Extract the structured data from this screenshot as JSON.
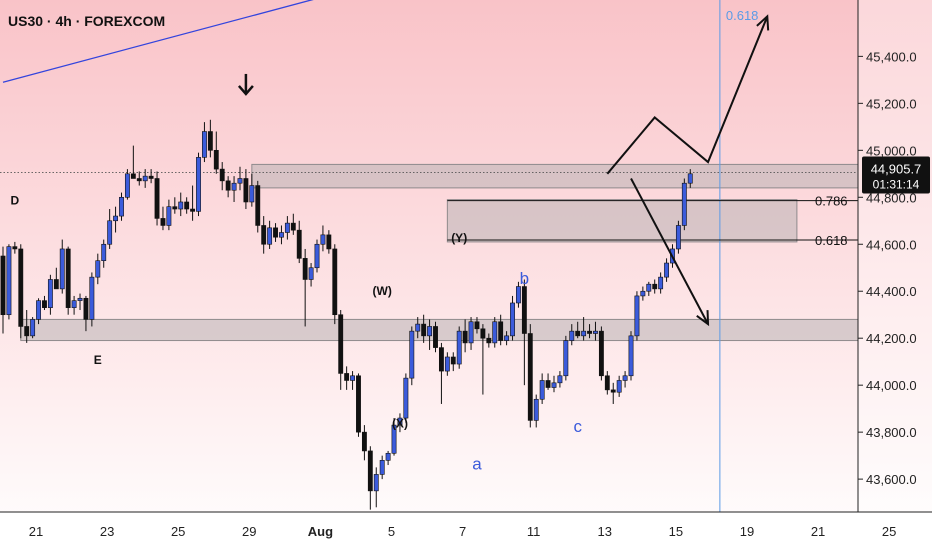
{
  "header": {
    "title": "US30 · 4h · FOREXCOM"
  },
  "colors": {
    "bg_top": "#f9c3c8",
    "bg_bottom": "#ffffff",
    "candle_up": "#3b5bdb",
    "candle_down": "#111111",
    "zone": "#b9b3b5",
    "trendline": "#3344dd",
    "fib_line": "#5b9be6",
    "price_tag_bg": "#111111"
  },
  "chart_data": {
    "type": "candlestick",
    "symbol": "US30",
    "timeframe": "4h",
    "source": "FOREXCOM",
    "ylim": [
      43460,
      45640
    ],
    "y_ticks": [
      43600,
      43800,
      44000,
      44200,
      44400,
      44600,
      44800,
      45000,
      45200,
      45400
    ],
    "y_tick_labels": [
      "43,600.0",
      "43,800.0",
      "44,000.0",
      "44,200.0",
      "44,400.0",
      "44,600.0",
      "44,800.0",
      "45,000.0",
      "45,200.0",
      "45,400.0"
    ],
    "x_tick_labels": [
      "21",
      "23",
      "25",
      "29",
      "Aug",
      "5",
      "7",
      "11",
      "13",
      "15",
      "19",
      "21",
      "25"
    ],
    "x_tick_bars": [
      0,
      12,
      24,
      36,
      48,
      60,
      72,
      84,
      96,
      108,
      120,
      132,
      144
    ],
    "bars_total": 146,
    "current_price": {
      "value": 44905.7,
      "label": "44,905.7",
      "countdown": "01:31:14"
    },
    "candles": [
      [
        44550,
        44590,
        44220,
        44300
      ],
      [
        44300,
        44600,
        44280,
        44590
      ],
      [
        44590,
        44610,
        44560,
        44580
      ],
      [
        44580,
        44600,
        44200,
        44250
      ],
      [
        44250,
        44320,
        44180,
        44210
      ],
      [
        44210,
        44290,
        44200,
        44280
      ],
      [
        44280,
        44370,
        44260,
        44360
      ],
      [
        44360,
        44380,
        44320,
        44330
      ],
      [
        44330,
        44470,
        44300,
        44450
      ],
      [
        44450,
        44500,
        44420,
        44410
      ],
      [
        44410,
        44620,
        44390,
        44580
      ],
      [
        44580,
        44590,
        44300,
        44330
      ],
      [
        44330,
        44380,
        44300,
        44360
      ],
      [
        44360,
        44390,
        44320,
        44370
      ],
      [
        44370,
        44380,
        44230,
        44280
      ],
      [
        44280,
        44480,
        44250,
        44460
      ],
      [
        44460,
        44560,
        44430,
        44530
      ],
      [
        44530,
        44620,
        44500,
        44600
      ],
      [
        44600,
        44750,
        44580,
        44700
      ],
      [
        44700,
        44760,
        44650,
        44720
      ],
      [
        44720,
        44820,
        44700,
        44800
      ],
      [
        44800,
        44920,
        44790,
        44900
      ],
      [
        44900,
        45020,
        44880,
        44880
      ],
      [
        44880,
        44910,
        44850,
        44870
      ],
      [
        44870,
        44920,
        44840,
        44890
      ],
      [
        44890,
        44920,
        44860,
        44880
      ],
      [
        44880,
        44910,
        44680,
        44710
      ],
      [
        44710,
        44760,
        44660,
        44680
      ],
      [
        44680,
        44790,
        44660,
        44760
      ],
      [
        44760,
        44800,
        44730,
        44750
      ],
      [
        44750,
        44820,
        44720,
        44780
      ],
      [
        44780,
        44800,
        44730,
        44750
      ],
      [
        44750,
        44850,
        44700,
        44740
      ],
      [
        44740,
        44990,
        44720,
        44970
      ],
      [
        44970,
        45120,
        44950,
        45080
      ],
      [
        45080,
        45130,
        44970,
        45000
      ],
      [
        45000,
        45080,
        44900,
        44920
      ],
      [
        44920,
        44950,
        44830,
        44870
      ],
      [
        44870,
        44890,
        44800,
        44830
      ],
      [
        44830,
        44890,
        44780,
        44860
      ],
      [
        44860,
        44930,
        44830,
        44880
      ],
      [
        44880,
        44920,
        44750,
        44780
      ],
      [
        44780,
        44900,
        44760,
        44850
      ],
      [
        44850,
        44870,
        44650,
        44680
      ],
      [
        44680,
        44720,
        44560,
        44600
      ],
      [
        44600,
        44700,
        44580,
        44670
      ],
      [
        44670,
        44690,
        44610,
        44630
      ],
      [
        44630,
        44680,
        44600,
        44650
      ],
      [
        44650,
        44720,
        44620,
        44690
      ],
      [
        44690,
        44730,
        44640,
        44660
      ],
      [
        44660,
        44700,
        44520,
        44540
      ],
      [
        44540,
        44580,
        44250,
        44450
      ],
      [
        44450,
        44520,
        44420,
        44500
      ],
      [
        44500,
        44620,
        44480,
        44600
      ],
      [
        44600,
        44680,
        44570,
        44640
      ],
      [
        44640,
        44660,
        44560,
        44580
      ],
      [
        44580,
        44600,
        44260,
        44300
      ],
      [
        44300,
        44320,
        43980,
        44050
      ],
      [
        44050,
        44080,
        43980,
        44020
      ],
      [
        44020,
        44060,
        43980,
        44040
      ],
      [
        44040,
        44050,
        43780,
        43800
      ],
      [
        43800,
        43830,
        43680,
        43720
      ],
      [
        43720,
        43740,
        43470,
        43550
      ],
      [
        43550,
        43650,
        43480,
        43620
      ],
      [
        43620,
        43700,
        43600,
        43680
      ],
      [
        43680,
        43720,
        43660,
        43710
      ],
      [
        43710,
        43860,
        43700,
        43830
      ],
      [
        43830,
        43880,
        43800,
        43860
      ],
      [
        43860,
        44050,
        43840,
        44030
      ],
      [
        44030,
        44250,
        44000,
        44230
      ],
      [
        44230,
        44290,
        44200,
        44260
      ],
      [
        44260,
        44300,
        44180,
        44210
      ],
      [
        44210,
        44280,
        44150,
        44250
      ],
      [
        44250,
        44270,
        44140,
        44160
      ],
      [
        44160,
        44180,
        43920,
        44060
      ],
      [
        44060,
        44140,
        44040,
        44120
      ],
      [
        44120,
        44140,
        44060,
        44090
      ],
      [
        44090,
        44250,
        44070,
        44230
      ],
      [
        44230,
        44280,
        44140,
        44180
      ],
      [
        44180,
        44290,
        44150,
        44270
      ],
      [
        44270,
        44290,
        44220,
        44240
      ],
      [
        44240,
        44260,
        43960,
        44200
      ],
      [
        44200,
        44220,
        44160,
        44180
      ],
      [
        44180,
        44290,
        44160,
        44270
      ],
      [
        44270,
        44300,
        44170,
        44190
      ],
      [
        44190,
        44230,
        44170,
        44210
      ],
      [
        44210,
        44380,
        44190,
        44350
      ],
      [
        44350,
        44440,
        44330,
        44420
      ],
      [
        44420,
        44450,
        44000,
        44220
      ],
      [
        44220,
        44260,
        43820,
        43850
      ],
      [
        43850,
        43960,
        43820,
        43940
      ],
      [
        43940,
        44050,
        43920,
        44020
      ],
      [
        44020,
        44050,
        43980,
        43990
      ],
      [
        43990,
        44040,
        43970,
        44010
      ],
      [
        44010,
        44060,
        43990,
        44040
      ],
      [
        44040,
        44210,
        44020,
        44190
      ],
      [
        44190,
        44260,
        44170,
        44230
      ],
      [
        44230,
        44270,
        44200,
        44210
      ],
      [
        44210,
        44290,
        44190,
        44230
      ],
      [
        44230,
        44260,
        44200,
        44220
      ],
      [
        44220,
        44270,
        44190,
        44230
      ],
      [
        44230,
        44250,
        44020,
        44040
      ],
      [
        44040,
        44060,
        43960,
        43980
      ],
      [
        43980,
        44010,
        43920,
        43970
      ],
      [
        43970,
        44040,
        43950,
        44020
      ],
      [
        44020,
        44060,
        43990,
        44040
      ],
      [
        44040,
        44230,
        44020,
        44210
      ],
      [
        44210,
        44400,
        44190,
        44380
      ],
      [
        44380,
        44420,
        44360,
        44400
      ],
      [
        44400,
        44440,
        44380,
        44430
      ],
      [
        44430,
        44450,
        44390,
        44410
      ],
      [
        44410,
        44480,
        44390,
        44460
      ],
      [
        44460,
        44540,
        44440,
        44520
      ],
      [
        44520,
        44600,
        44500,
        44580
      ],
      [
        44580,
        44700,
        44560,
        44680
      ],
      [
        44680,
        44880,
        44660,
        44860
      ],
      [
        44860,
        44920,
        44840,
        44900
      ]
    ],
    "zones": [
      {
        "name": "upper-supply-zone",
        "y_from": 44840,
        "y_to": 44940,
        "bar_from": 42,
        "bar_to": 146
      },
      {
        "name": "mid-fib-zone",
        "y_from": 44610,
        "y_to": 44790,
        "bar_from": 75,
        "bar_to": 134
      },
      {
        "name": "lower-demand-zone",
        "y_from": 44190,
        "y_to": 44280,
        "bar_from": 3,
        "bar_to": 146
      }
    ],
    "levels": [
      {
        "label": "0.786",
        "value": 44786,
        "bar_from": 75,
        "bar_to": 134
      },
      {
        "label": "0.618",
        "value": 44618,
        "bar_from": 75,
        "bar_to": 134
      }
    ],
    "wave_labels": [
      {
        "text": "D",
        "bar": 2,
        "price": 44770,
        "style": "black"
      },
      {
        "text": "E",
        "bar": 16,
        "price": 44090,
        "style": "black"
      },
      {
        "text": "(W)",
        "bar": 64,
        "price": 44385,
        "style": "black"
      },
      {
        "text": "(X)",
        "bar": 67,
        "price": 43820,
        "style": "black"
      },
      {
        "text": "(Y)",
        "bar": 77,
        "price": 44610,
        "style": "black"
      },
      {
        "text": "a",
        "bar": 80,
        "price": 43640,
        "style": "blue"
      },
      {
        "text": "b",
        "bar": 88,
        "price": 44430,
        "style": "blue"
      },
      {
        "text": "c",
        "bar": 97,
        "price": 43800,
        "style": "blue"
      }
    ],
    "vertical_line": {
      "label": "0.618",
      "bar": 121
    },
    "projections": [
      {
        "name": "bullish-path",
        "points": [
          [
            102,
            44900
          ],
          [
            110,
            45140
          ],
          [
            119,
            44950
          ],
          [
            129,
            45570
          ]
        ]
      },
      {
        "name": "bearish-path",
        "points": [
          [
            106,
            44880
          ],
          [
            119,
            44260
          ]
        ]
      }
    ],
    "trendline": {
      "points": [
        [
          0,
          45290
        ],
        [
          55,
          45660
        ]
      ]
    },
    "down_arrow": {
      "bar": 41,
      "price": 45240
    }
  }
}
